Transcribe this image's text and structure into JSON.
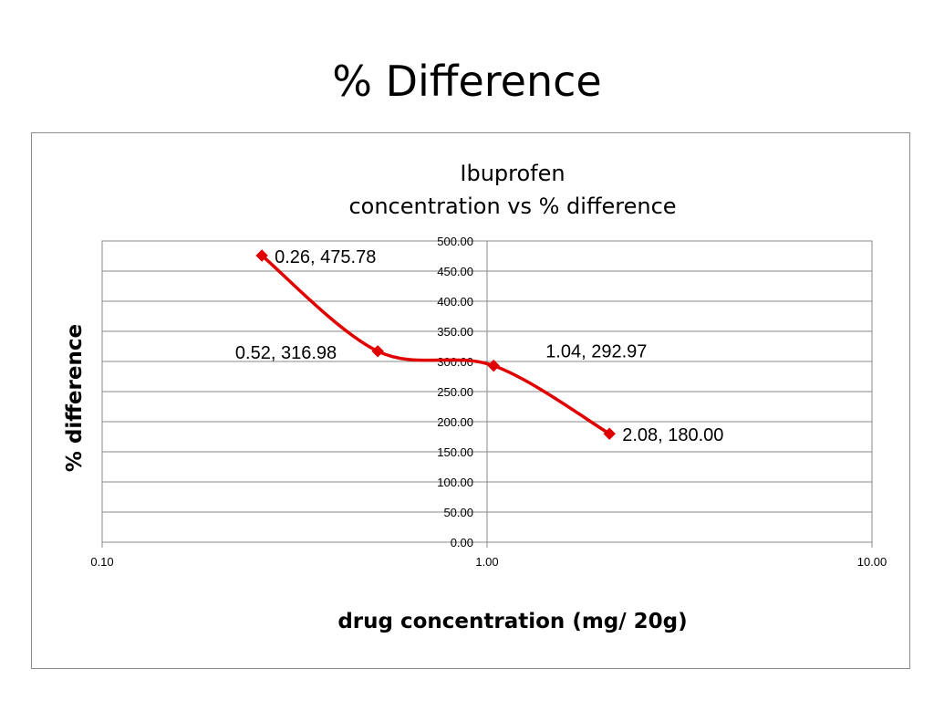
{
  "slide_title": "% Difference",
  "chart_data": {
    "type": "line",
    "title": [
      "Ibuprofen",
      "concentration vs % difference"
    ],
    "xlabel": "drug concentration (mg/ 20g)",
    "ylabel": "% difference",
    "x_scale": "log",
    "xlim": [
      0.1,
      10
    ],
    "ylim": [
      0,
      500
    ],
    "x_ticks": [
      "0.10",
      "1.00",
      "10.00"
    ],
    "y_ticks": [
      "0.00",
      "50.00",
      "100.00",
      "150.00",
      "200.00",
      "250.00",
      "300.00",
      "350.00",
      "400.00",
      "450.00",
      "500.00"
    ],
    "grid": "horizontal",
    "legend": "none",
    "series": [
      {
        "color": "#e00000",
        "marker": "diamond",
        "smooth": true,
        "x": [
          0.26,
          0.52,
          1.04,
          2.08
        ],
        "y": [
          475.78,
          316.98,
          292.97,
          180.0
        ]
      }
    ],
    "data_labels": [
      "0.26, 475.78",
      "0.52, 316.98",
      "1.04, 292.97",
      "2.08, 180.00"
    ]
  }
}
